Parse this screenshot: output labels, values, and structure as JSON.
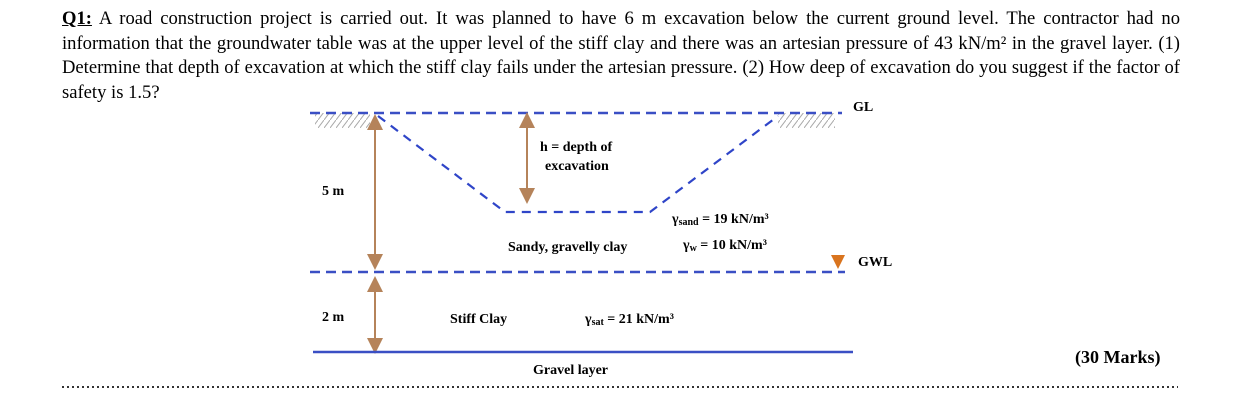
{
  "question": {
    "label": "Q1:",
    "text": "A road construction project is carried out. It was planned to have 6 m excavation below the current ground level. The contractor had no information that the groundwater table was at the upper level of the stiff clay and there was an artesian pressure of 43 kN/m² in the gravel layer. (1) Determine that depth of excavation at which the stiff clay fails under the artesian pressure. (2) How deep of excavation do you suggest if the factor of safety is 1.5?"
  },
  "diagram": {
    "ground_level": "GL",
    "groundwater_level": "GWL",
    "depth_label_line1": "h = depth of",
    "depth_label_line2": "excavation",
    "upper_thickness": "5 m",
    "lower_thickness": "2 m",
    "upper_layer": "Sandy, gravelly clay",
    "middle_layer": "Stiff Clay",
    "bottom_layer": "Gravel layer",
    "gamma_sand": {
      "symbol": "γ",
      "subscript": "sand",
      "rest": " = 19 kN/m³"
    },
    "gamma_w": {
      "symbol": "γ",
      "subscript": "w",
      "rest": " = 10 kN/m³"
    },
    "gamma_sat": {
      "symbol": "γ",
      "subscript": "sat",
      "rest": " = 21 kN/m³"
    }
  },
  "marks": "(30 Marks)"
}
